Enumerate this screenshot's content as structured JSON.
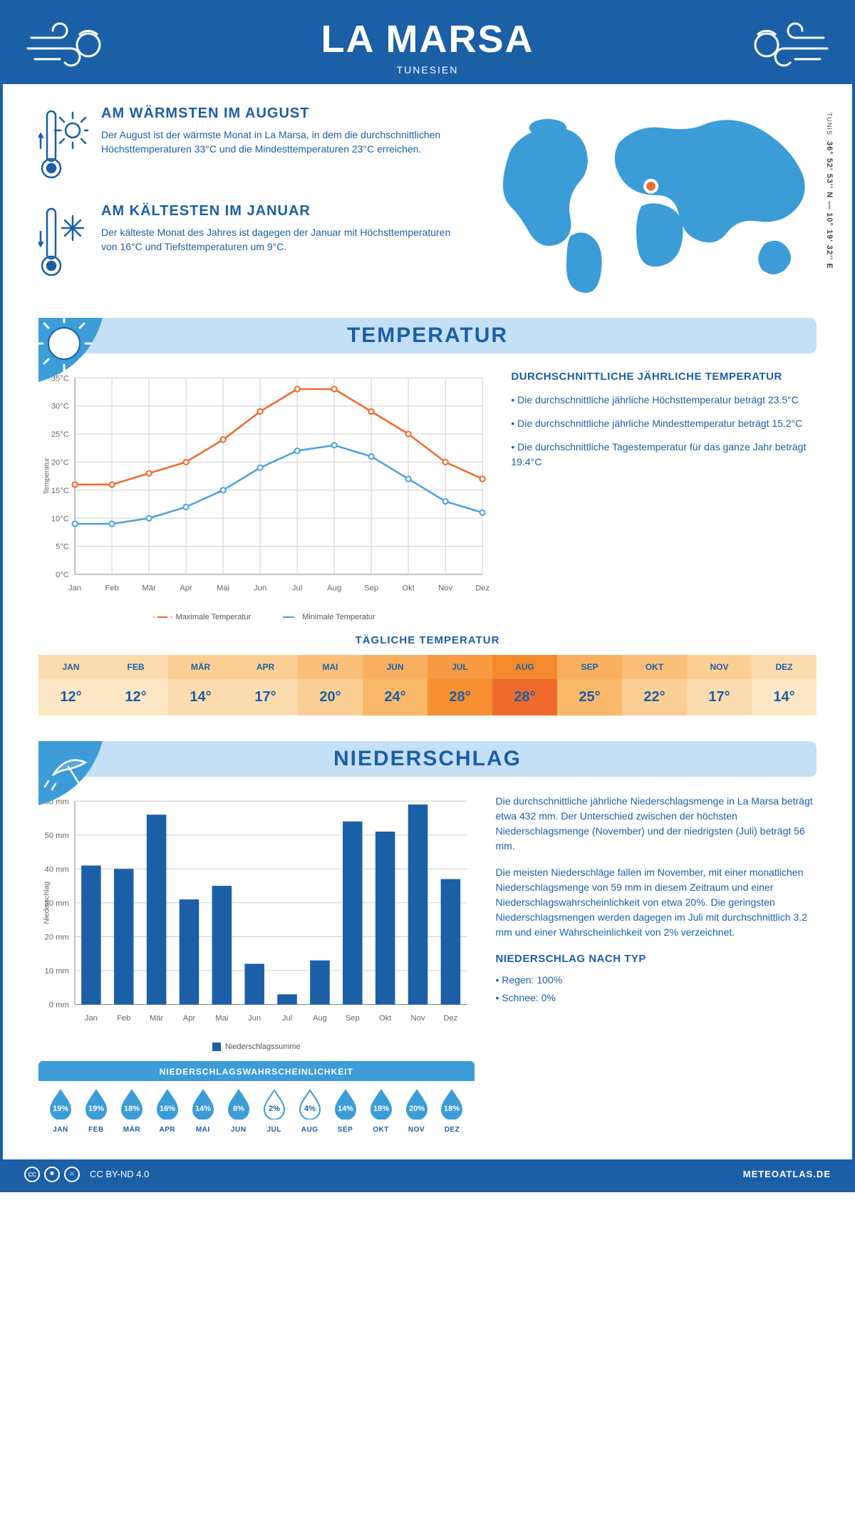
{
  "header": {
    "title": "LA MARSA",
    "subtitle": "TUNESIEN"
  },
  "coords": {
    "text": "36° 52' 53'' N — 10° 19' 32'' E",
    "city": "TUNIS"
  },
  "warmest": {
    "title": "AM WÄRMSTEN IM AUGUST",
    "text": "Der August ist der wärmste Monat in La Marsa, in dem die durchschnittlichen Höchsttemperaturen 33°C und die Mindesttemperaturen 23°C erreichen."
  },
  "coldest": {
    "title": "AM KÄLTESTEN IM JANUAR",
    "text": "Der kälteste Monat des Jahres ist dagegen der Januar mit Höchsttemperaturen von 16°C und Tiefsttemperaturen um 9°C."
  },
  "colors": {
    "primary": "#1b5fa6",
    "light_blue": "#4da3da",
    "pale_blue": "#c4e0f6",
    "orange": "#ef6b2d",
    "grid": "#d0d0d0",
    "axis": "#888"
  },
  "temperature": {
    "heading": "TEMPERATUR",
    "months": [
      "Jan",
      "Feb",
      "Mär",
      "Apr",
      "Mai",
      "Jun",
      "Jul",
      "Aug",
      "Sep",
      "Okt",
      "Nov",
      "Dez"
    ],
    "max": [
      16,
      16,
      18,
      20,
      24,
      29,
      33,
      33,
      29,
      25,
      20,
      17
    ],
    "min": [
      9,
      9,
      10,
      12,
      15,
      19,
      22,
      23,
      21,
      17,
      13,
      11
    ],
    "ylim": [
      0,
      35
    ],
    "ytick_step": 5,
    "ylabel": "Temperatur",
    "max_color": "#ef6b2d",
    "min_color": "#4da3da",
    "legend_max": "Maximale Temperatur",
    "legend_min": "Minimale Temperatur",
    "info_title": "DURCHSCHNITTLICHE JÄHRLICHE TEMPERATUR",
    "info_1": "• Die durchschnittliche jährliche Höchsttemperatur beträgt 23.5°C",
    "info_2": "• Die durchschnittliche jährliche Mindesttemperatur beträgt 15.2°C",
    "info_3": "• Die durchschnittliche Tagestemperatur für das ganze Jahr beträgt 19.4°C"
  },
  "daily": {
    "title": "TÄGLICHE TEMPERATUR",
    "months": [
      "JAN",
      "FEB",
      "MÄR",
      "APR",
      "MAI",
      "JUN",
      "JUL",
      "AUG",
      "SEP",
      "OKT",
      "NOV",
      "DEZ"
    ],
    "values": [
      "12°",
      "12°",
      "14°",
      "17°",
      "20°",
      "24°",
      "28°",
      "28°",
      "25°",
      "22°",
      "17°",
      "14°"
    ],
    "head_colors": [
      "#fcdcae",
      "#fcdcae",
      "#fbcf93",
      "#fbcf93",
      "#fac079",
      "#f8b060",
      "#f79a42",
      "#f58a2c",
      "#f8b060",
      "#fac079",
      "#fbcf93",
      "#fcdcae"
    ],
    "val_colors": [
      "#fde6c4",
      "#fde6c4",
      "#fcdcae",
      "#fcdcae",
      "#fbcf93",
      "#f9b76a",
      "#f68f30",
      "#ef6b2d",
      "#f9b76a",
      "#fbcf93",
      "#fcdcae",
      "#fde6c4"
    ]
  },
  "precip": {
    "heading": "NIEDERSCHLAG",
    "months": [
      "Jan",
      "Feb",
      "Mär",
      "Apr",
      "Mai",
      "Jun",
      "Jul",
      "Aug",
      "Sep",
      "Okt",
      "Nov",
      "Dez"
    ],
    "values": [
      41,
      40,
      56,
      31,
      35,
      12,
      3,
      13,
      54,
      51,
      59,
      37
    ],
    "ylim": [
      0,
      60
    ],
    "ytick_step": 10,
    "ylabel": "Niederschlag",
    "bar_color": "#1b5fa6",
    "legend": "Niederschlagssumme",
    "para1": "Die durchschnittliche jährliche Niederschlagsmenge in La Marsa beträgt etwa 432 mm. Der Unterschied zwischen der höchsten Niederschlagsmenge (November) und der niedrigsten (Juli) beträgt 56 mm.",
    "para2": "Die meisten Niederschläge fallen im November, mit einer monatlichen Niederschlagsmenge von 59 mm in diesem Zeitraum und einer Niederschlagswahrscheinlichkeit von etwa 20%. Die geringsten Niederschlagsmengen werden dagegen im Juli mit durchschnittlich 3.2 mm und einer Wahrscheinlichkeit von 2% verzeichnet.",
    "type_title": "NIEDERSCHLAG NACH TYP",
    "type_1": "• Regen: 100%",
    "type_2": "• Schnee: 0%"
  },
  "prob": {
    "title": "NIEDERSCHLAGSWAHRSCHEINLICHKEIT",
    "months": [
      "JAN",
      "FEB",
      "MÄR",
      "APR",
      "MAI",
      "JUN",
      "JUL",
      "AUG",
      "SEP",
      "OKT",
      "NOV",
      "DEZ"
    ],
    "values": [
      "19%",
      "19%",
      "18%",
      "16%",
      "14%",
      "8%",
      "2%",
      "4%",
      "14%",
      "18%",
      "20%",
      "18%"
    ],
    "filled": [
      true,
      true,
      true,
      true,
      true,
      true,
      false,
      false,
      true,
      true,
      true,
      true
    ]
  },
  "footer": {
    "license": "CC BY-ND 4.0",
    "site": "METEOATLAS.DE"
  }
}
